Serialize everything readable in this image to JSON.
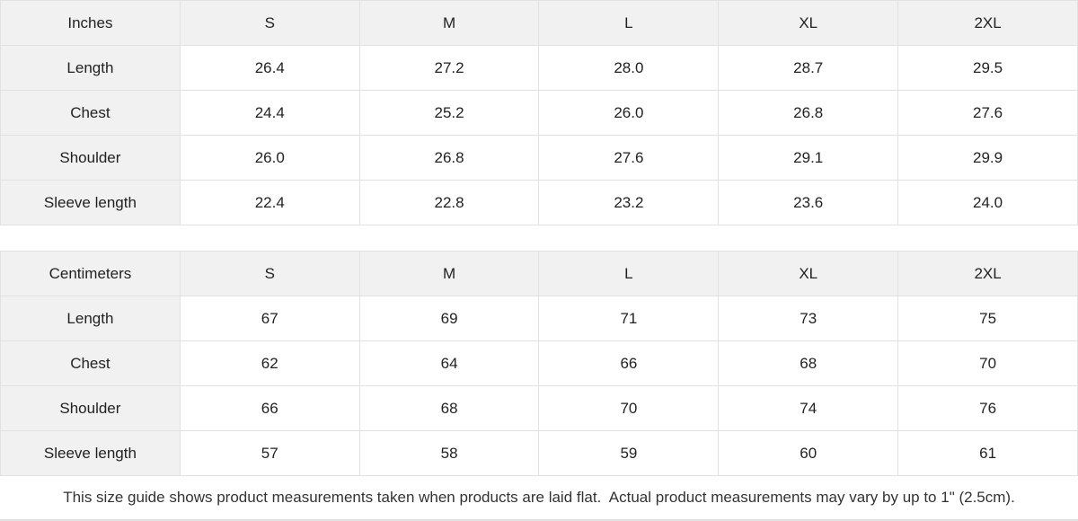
{
  "tables": [
    {
      "name": "inches",
      "unit_label": "Inches",
      "sizes": [
        "S",
        "M",
        "L",
        "XL",
        "2XL"
      ],
      "rows": [
        {
          "label": "Length",
          "values": [
            "26.4",
            "27.2",
            "28.0",
            "28.7",
            "29.5"
          ]
        },
        {
          "label": "Chest",
          "values": [
            "24.4",
            "25.2",
            "26.0",
            "26.8",
            "27.6"
          ]
        },
        {
          "label": "Shoulder",
          "values": [
            "26.0",
            "26.8",
            "27.6",
            "29.1",
            "29.9"
          ]
        },
        {
          "label": "Sleeve length",
          "values": [
            "22.4",
            "22.8",
            "23.2",
            "23.6",
            "24.0"
          ]
        }
      ]
    },
    {
      "name": "centimeters",
      "unit_label": "Centimeters",
      "sizes": [
        "S",
        "M",
        "L",
        "XL",
        "2XL"
      ],
      "rows": [
        {
          "label": "Length",
          "values": [
            "67",
            "69",
            "71",
            "73",
            "75"
          ]
        },
        {
          "label": "Chest",
          "values": [
            "62",
            "64",
            "66",
            "68",
            "70"
          ]
        },
        {
          "label": "Shoulder",
          "values": [
            "66",
            "68",
            "70",
            "74",
            "76"
          ]
        },
        {
          "label": "Sleeve length",
          "values": [
            "57",
            "58",
            "59",
            "60",
            "61"
          ]
        }
      ]
    }
  ],
  "footer": {
    "note": "This size guide shows product measurements taken when products are laid flat.  Actual product measurements may vary by up to 1\" (2.5cm)."
  },
  "colors": {
    "header_bg": "#f1f1f1",
    "border": "#e1e1e1",
    "text": "#222222"
  }
}
